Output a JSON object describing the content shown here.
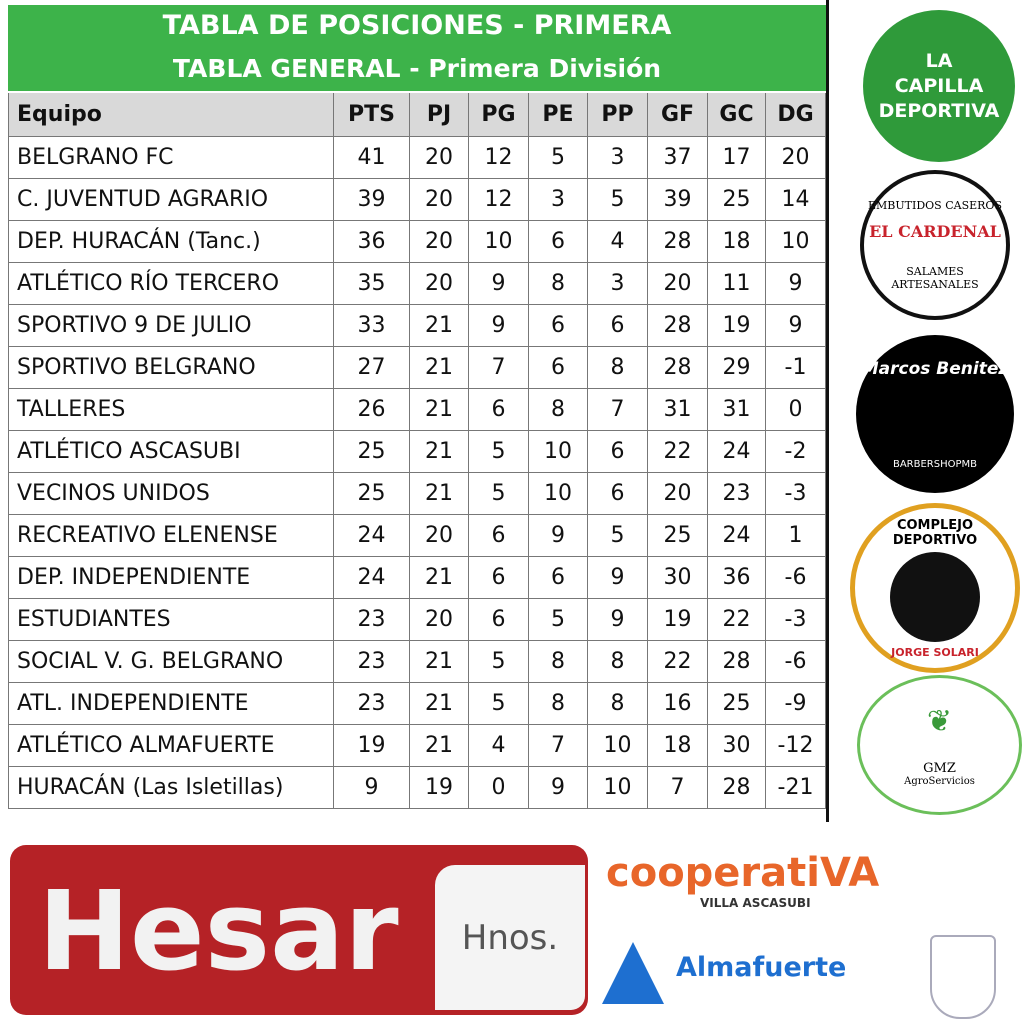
{
  "header": {
    "title": "TABLA DE POSICIONES  - PRIMERA",
    "subtitle": "TABLA GENERAL - Primera División"
  },
  "table": {
    "columns": [
      "Equipo",
      "PTS",
      "PJ",
      "PG",
      "PE",
      "PP",
      "GF",
      "GC",
      "DG"
    ],
    "rows": [
      [
        "BELGRANO FC",
        41,
        20,
        12,
        5,
        3,
        37,
        17,
        20
      ],
      [
        "C. JUVENTUD AGRARIO",
        39,
        20,
        12,
        3,
        5,
        39,
        25,
        14
      ],
      [
        "DEP. HURACÁN (Tanc.)",
        36,
        20,
        10,
        6,
        4,
        28,
        18,
        10
      ],
      [
        "ATLÉTICO RÍO TERCERO",
        35,
        20,
        9,
        8,
        3,
        20,
        11,
        9
      ],
      [
        "SPORTIVO 9 DE JULIO",
        33,
        21,
        9,
        6,
        6,
        28,
        19,
        9
      ],
      [
        "SPORTIVO BELGRANO",
        27,
        21,
        7,
        6,
        8,
        28,
        29,
        -1
      ],
      [
        "TALLERES",
        26,
        21,
        6,
        8,
        7,
        31,
        31,
        0
      ],
      [
        "ATLÉTICO ASCASUBI",
        25,
        21,
        5,
        10,
        6,
        22,
        24,
        -2
      ],
      [
        "VECINOS UNIDOS",
        25,
        21,
        5,
        10,
        6,
        20,
        23,
        -3
      ],
      [
        "RECREATIVO ELENENSE",
        24,
        20,
        6,
        9,
        5,
        25,
        24,
        1
      ],
      [
        "DEP. INDEPENDIENTE",
        24,
        21,
        6,
        6,
        9,
        30,
        36,
        -6
      ],
      [
        "ESTUDIANTES",
        23,
        20,
        6,
        5,
        9,
        19,
        22,
        -3
      ],
      [
        "SOCIAL V. G. BELGRANO",
        23,
        21,
        5,
        8,
        8,
        22,
        28,
        -6
      ],
      [
        "ATL. INDEPENDIENTE",
        23,
        21,
        5,
        8,
        8,
        16,
        25,
        -9
      ],
      [
        "ATLÉTICO ALMAFUERTE",
        19,
        21,
        4,
        7,
        10,
        18,
        30,
        -12
      ],
      [
        "HURACÁN (Las Isletillas)",
        9,
        19,
        0,
        9,
        10,
        7,
        28,
        -21
      ]
    ]
  },
  "sponsors": {
    "capilla": [
      "LA",
      "CAPILLA",
      "DEPORTIVA"
    ],
    "cardenal": [
      "EMBUTIDOS CASEROS",
      "EL CARDENAL",
      "SALAMES ARTESANALES"
    ],
    "barber": [
      "Marcos Benitez",
      "BARBERSHOPMB"
    ],
    "complejo": [
      "COMPLEJO DEPORTIVO",
      "JORGE SOLARI"
    ],
    "gmz": [
      "GMZ",
      "AgroServicios"
    ],
    "hesar": [
      "Hesar",
      "Hnos."
    ],
    "cooperativa": [
      "cooperatiVA",
      "VILLA ASCASUBI"
    ],
    "almafuerte": "Almafuerte"
  }
}
